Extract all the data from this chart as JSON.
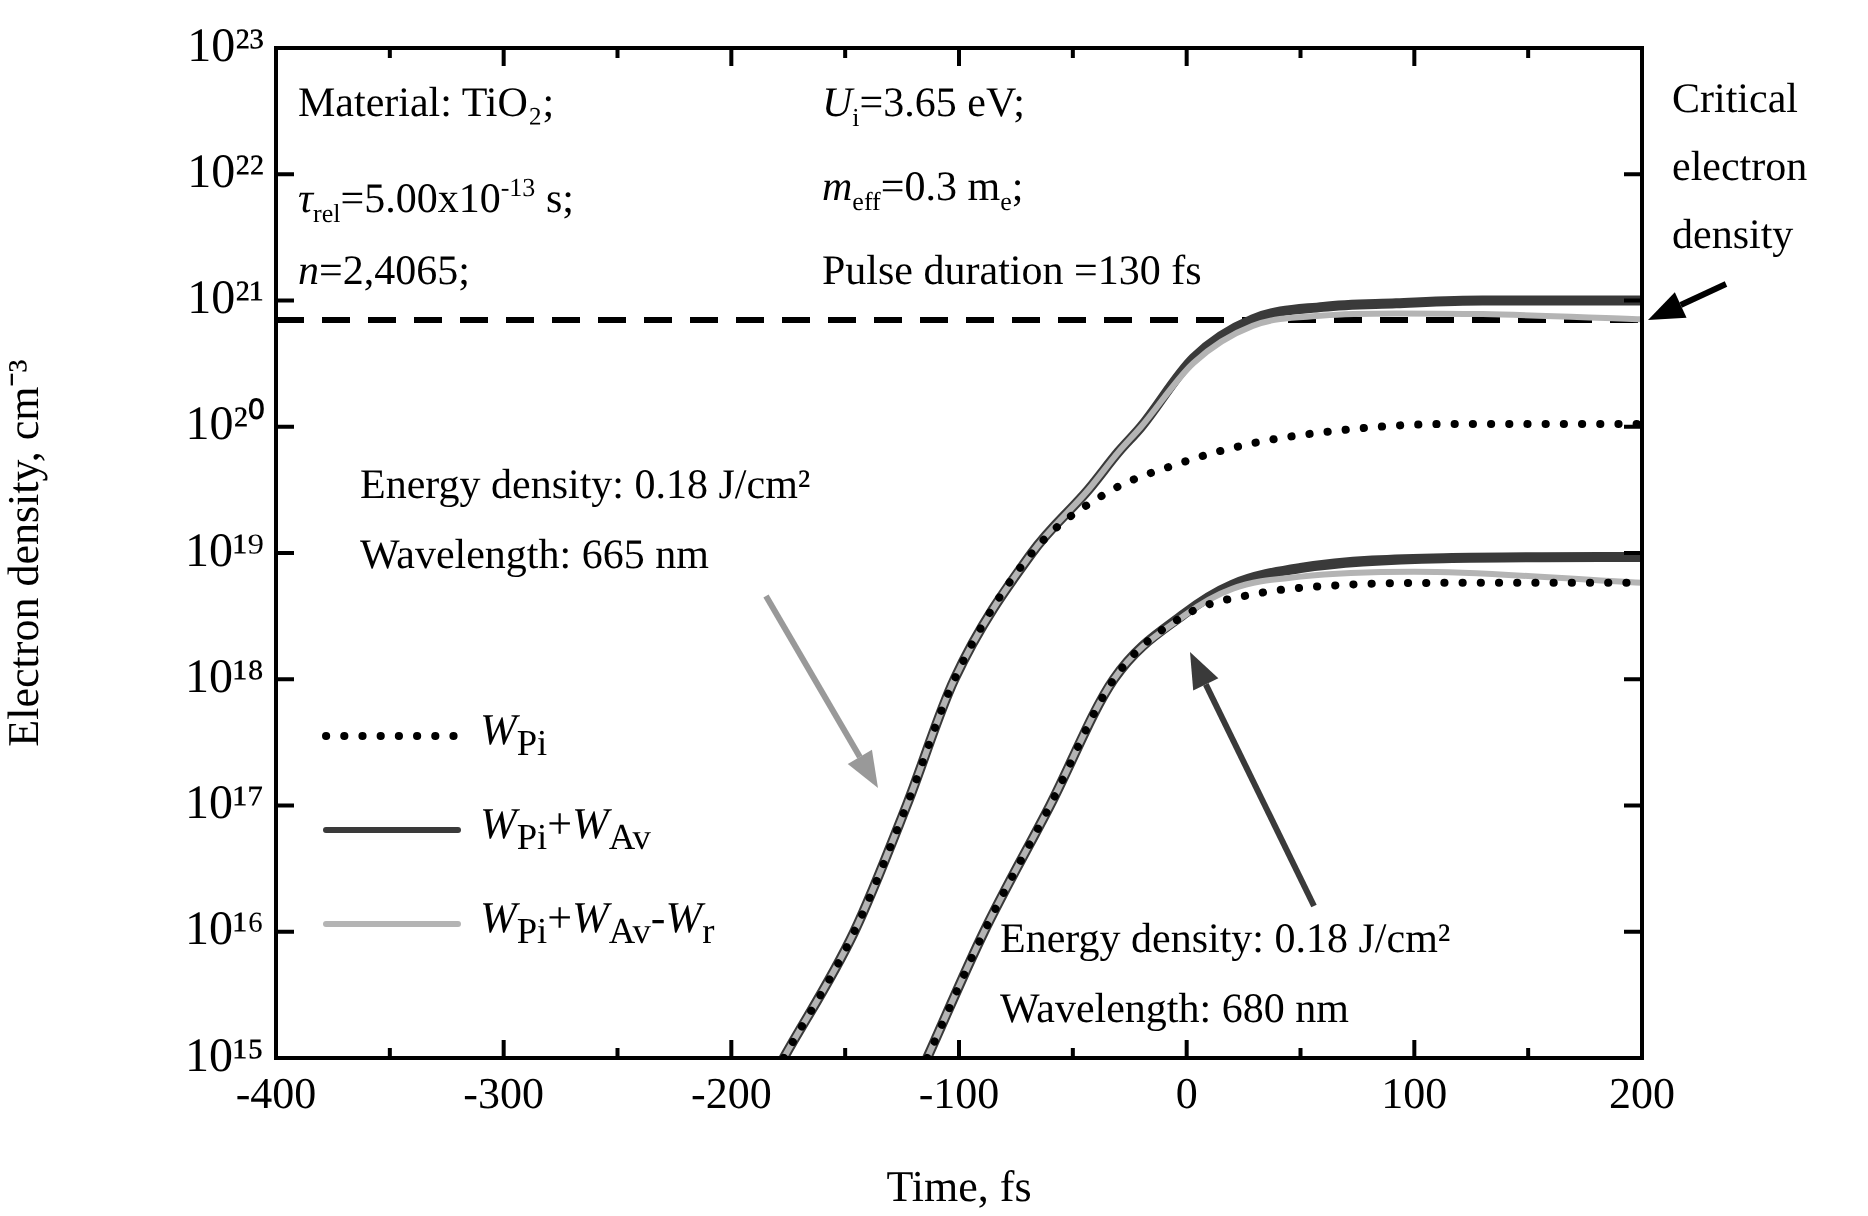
{
  "chart_data": {
    "type": "line",
    "xlabel": "Time, fs",
    "ylabel": "Electron density, cm⁻³",
    "xlim": [
      -400,
      200
    ],
    "xticks": [
      -400,
      -300,
      -200,
      -100,
      0,
      100,
      200
    ],
    "log": "y",
    "ylim": [
      1000000000000000.0,
      1e+23
    ],
    "yticks": [
      {
        "value": 1000000000000000.0,
        "label": "10¹⁵"
      },
      {
        "value": 1e+16,
        "label": "10¹⁶"
      },
      {
        "value": 1e+17,
        "label": "10¹⁷"
      },
      {
        "value": 1e+18,
        "label": "10¹⁸"
      },
      {
        "value": 1e+19,
        "label": "10¹⁹"
      },
      {
        "value": 1e+20,
        "label": "10²⁰"
      },
      {
        "value": 1e+21,
        "label": "10²¹"
      },
      {
        "value": 1e+22,
        "label": "10²²"
      },
      {
        "value": 1e+23,
        "label": "10²³"
      }
    ],
    "grid": false,
    "legend": "left",
    "marker": "none",
    "ref_lines": [
      {
        "axis": "y",
        "value": 7e+20,
        "line_style": "dashed",
        "color": "#000000"
      }
    ],
    "annotations": [
      "Material: TiO₂;",
      "U$_{i}$=3.65 eV;",
      "τ$_{rel}$=5.00x10$^{-13}$ s;",
      "m$_{eff}$=0.3 m$_{e}$;",
      "n=2,4065;",
      "Pulse duration =130 fs",
      "Critical electron density",
      "Energy density: 0.18 J/cm²\nWavelength: 665 nm",
      "Energy density: 0.18 J/cm²\nWavelength: 680 nm"
    ],
    "series": [
      {
        "name": "W$_{Pi}$",
        "color": "#000000",
        "line_style": "dotted",
        "x": [
          -177,
          -146,
          -123,
          -102,
          -68,
          -35,
          -5,
          29,
          71,
          113,
          200
        ],
        "values": [
          1000000000000000.0,
          1e+16,
          1e+17,
          1e+18,
          1e+19,
          3e+19,
          5e+19,
          7.4e+19,
          9.5e+19,
          1.05e+20,
          1.05e+20
        ]
      },
      {
        "name": "W$_{Pi}$+W$_{Av}$",
        "color": "#3a3a3a",
        "line_style": "solid",
        "x": [
          -177,
          -146,
          -123,
          -102,
          -68,
          -43,
          -30,
          -20,
          3,
          29,
          60,
          92,
          130,
          200
        ],
        "values": [
          1000000000000000.0,
          1e+16,
          1e+17,
          1e+18,
          1e+19,
          3.2e+19,
          6.3e+19,
          1e+20,
          3.5e+20,
          7.1e+20,
          8.9e+20,
          9.5e+20,
          1e+21,
          1e+21
        ]
      },
      {
        "name": "W$_{Pi}$+W$_{Av}$-W$_{r}$",
        "color": "#b4b4b4",
        "line_style": "solid",
        "x": [
          -177,
          -146,
          -123,
          -102,
          -68,
          -43,
          -30,
          -20,
          3,
          29,
          60,
          92,
          130,
          200
        ],
        "values": [
          1000000000000000.0,
          1e+16,
          1e+17,
          1e+18,
          1e+19,
          3.2e+19,
          6.3e+19,
          1e+20,
          3.2e+20,
          6.3e+20,
          7.6e+20,
          7.9e+20,
          7.8e+20,
          7.1e+20
        ]
      },
      {
        "color": "#000000",
        "line_style": "dotted",
        "x": [
          -114,
          -89,
          -60,
          -32,
          -1,
          29,
          70,
          113,
          200
        ],
        "values": [
          1000000000000000.0,
          1e+16,
          1e+17,
          1e+18,
          3.2e+18,
          4.7e+18,
          5.6e+18,
          5.8e+18,
          5.8e+18
        ]
      },
      {
        "color": "#3a3a3a",
        "line_style": "solid",
        "x": [
          -114,
          -89,
          -60,
          -32,
          -1,
          20,
          50,
          113,
          200
        ],
        "values": [
          1000000000000000.0,
          1e+16,
          1e+17,
          1e+18,
          3.3e+18,
          5.6e+18,
          7.6e+18,
          9.1e+18,
          9.3e+18
        ]
      },
      {
        "color": "#b4b4b4",
        "line_style": "solid",
        "x": [
          -114,
          -89,
          -60,
          -32,
          -1,
          20,
          50,
          100,
          200
        ],
        "values": [
          1000000000000000.0,
          1e+16,
          1e+17,
          1e+18,
          3.2e+18,
          5.2e+18,
          6.5e+18,
          7.1e+18,
          5.8e+18
        ]
      }
    ]
  }
}
